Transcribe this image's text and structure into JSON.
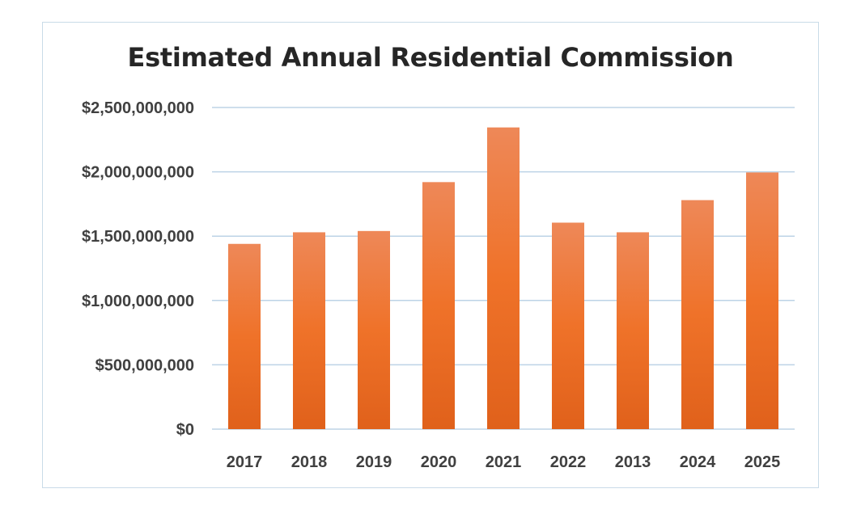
{
  "chart_data": {
    "type": "bar",
    "title": "Estimated Annual Residential Commission",
    "xlabel": "",
    "ylabel": "",
    "categories": [
      "2017",
      "2018",
      "2019",
      "2020",
      "2021",
      "2022",
      "2013",
      "2024",
      "2025"
    ],
    "values": [
      1440000000,
      1530000000,
      1540000000,
      1920000000,
      2345000000,
      1605000000,
      1530000000,
      1780000000,
      1995000000
    ],
    "ylim": [
      0,
      2500000000
    ],
    "yticks": [
      0,
      500000000,
      1000000000,
      1500000000,
      2000000000,
      2500000000
    ],
    "ytick_labels": [
      "$0",
      "$500,000,000",
      "$1,000,000,000",
      "$1,500,000,000",
      "$2,000,000,000",
      "$2,500,000,000"
    ],
    "grid": true,
    "legend": "none",
    "colors": {
      "bar_top": "#ee8858",
      "bar_mid": "#ef7229",
      "bar_bottom": "#e0611b",
      "gridline": "#bdd3e6",
      "axis_text": "#404040",
      "title_text": "#262626",
      "frame": "#c9dbe8"
    }
  }
}
